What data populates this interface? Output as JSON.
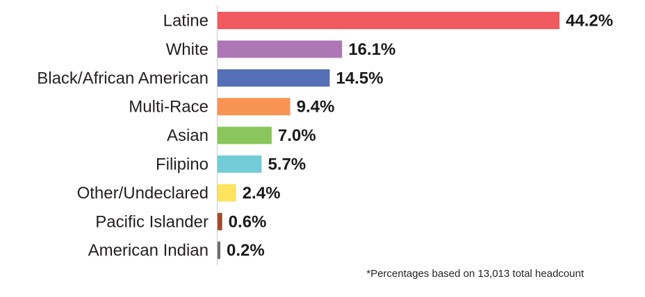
{
  "chart_data": {
    "type": "bar",
    "orientation": "horizontal",
    "categories": [
      "Latine",
      "White",
      "Black/African American",
      "Multi-Race",
      "Asian",
      "Filipino",
      "Other/Undeclared",
      "Pacific Islander",
      "American Indian"
    ],
    "values": [
      44.2,
      16.1,
      14.5,
      9.4,
      7.0,
      5.7,
      2.4,
      0.6,
      0.2
    ],
    "value_labels": [
      "44.2%",
      "16.1%",
      "14.5%",
      "9.4%",
      "7.0%",
      "5.7%",
      "2.4%",
      "0.6%",
      "0.2%"
    ],
    "colors": [
      "#f05a5f",
      "#ad76b4",
      "#5570b7",
      "#f89453",
      "#8bc65c",
      "#73cdd8",
      "#fde35e",
      "#a34a2b",
      "#6d6e70"
    ],
    "xlim": [
      0,
      44.2
    ],
    "grid": false,
    "legend": "none"
  },
  "footnote": "*Percentages based on 13,013 total headcount"
}
